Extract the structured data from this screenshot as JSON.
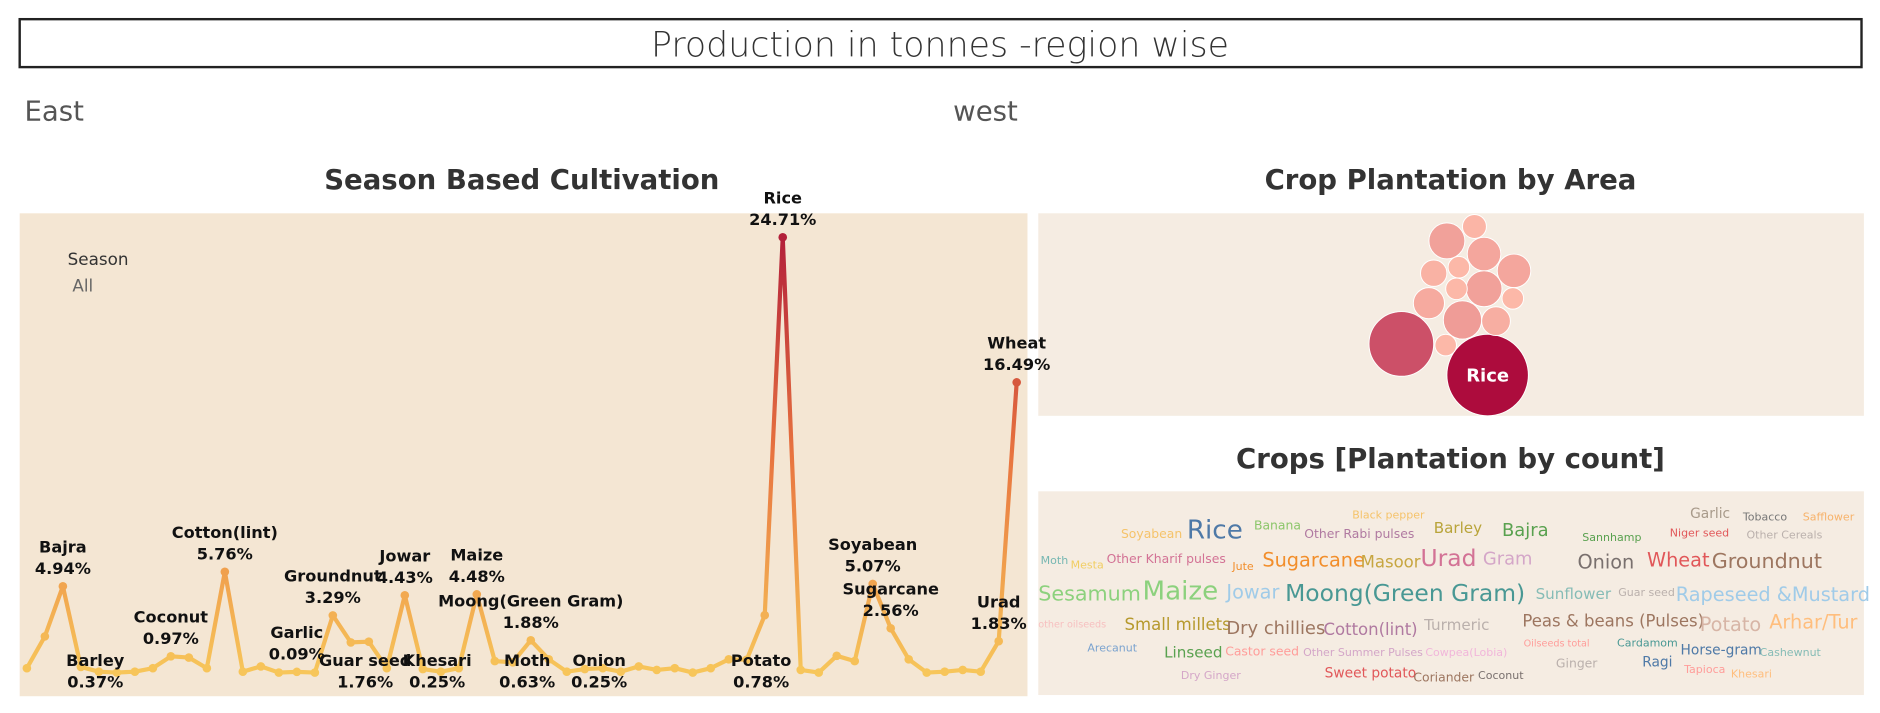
{
  "title": "Production in tonnes -region wise",
  "regions": [
    "East",
    "west"
  ],
  "chart_data": [
    {
      "type": "line",
      "title": "Season Based Cultivation",
      "filter_title": "Season",
      "filter_value": "All",
      "colors": [
        "#f7c65a",
        "#e8743f",
        "#b3203a"
      ],
      "categories": [
        null,
        null,
        "Bajra",
        "Barley",
        null,
        null,
        null,
        null,
        "Coconut",
        null,
        null,
        "Cotton(lint)",
        null,
        null,
        null,
        "Garlic",
        null,
        "Groundnut",
        "Guar seed",
        null,
        null,
        "Jowar",
        "Khesari",
        null,
        null,
        "Maize",
        null,
        "Moth",
        "Moong(Green Gram)",
        null,
        null,
        "Onion",
        null,
        null,
        null,
        null,
        null,
        null,
        null,
        null,
        "Potato",
        null,
        "Rice",
        null,
        null,
        null,
        null,
        "Soyabean",
        "Sugarcane",
        null,
        null,
        null,
        null,
        null,
        "Urad",
        "Wheat"
      ],
      "values": [
        0.3,
        2.1,
        4.94,
        0.37,
        0.1,
        0.05,
        0.1,
        0.3,
        0.97,
        0.9,
        0.3,
        5.76,
        0.1,
        0.4,
        0.05,
        0.09,
        0.05,
        3.29,
        1.76,
        1.8,
        0.3,
        4.43,
        0.25,
        0.1,
        0.3,
        4.48,
        0.7,
        0.63,
        1.88,
        0.8,
        0.1,
        0.25,
        0.3,
        0.1,
        0.4,
        0.2,
        0.3,
        0.05,
        0.3,
        0.8,
        0.78,
        3.3,
        24.71,
        0.2,
        0.05,
        1.0,
        0.7,
        5.07,
        2.56,
        0.8,
        0.05,
        0.1,
        0.2,
        0.1,
        1.83,
        16.49
      ],
      "value_labels": [
        null,
        null,
        "4.94%",
        "0.37%",
        null,
        null,
        null,
        null,
        "0.97%",
        null,
        null,
        "5.76%",
        null,
        null,
        null,
        "0.09%",
        null,
        "3.29%",
        "1.76%",
        null,
        null,
        "4.43%",
        "0.25%",
        null,
        null,
        "4.48%",
        null,
        "0.63%",
        "1.88%",
        null,
        null,
        "0.25%",
        null,
        null,
        null,
        null,
        null,
        null,
        null,
        null,
        "0.78%",
        null,
        "24.71%",
        null,
        null,
        null,
        null,
        "5.07%",
        "2.56%",
        null,
        null,
        null,
        null,
        null,
        "1.83%",
        "16.49%"
      ]
    },
    {
      "type": "bubble",
      "title": "Crop Plantation by Area",
      "colors": [
        "#fcb8a8",
        "#ad0c3d"
      ],
      "categories": [
        "Rice",
        null,
        null,
        null,
        null,
        null,
        null,
        null,
        null,
        null,
        null,
        null,
        null,
        null,
        null
      ],
      "values": [
        1156,
        729,
        225,
        100,
        196,
        196,
        121,
        81,
        225,
        169,
        81,
        81,
        256,
        144,
        81
      ]
    },
    {
      "type": "wordcloud",
      "title": "Crops [Plantation by count]",
      "words": [
        {
          "name": "Black pepper",
          "color": "#f5c36a",
          "value": 8
        },
        {
          "name": "Garlic",
          "color": "#a89a8a",
          "value": 10
        },
        {
          "name": "Tobacco",
          "color": "#777777",
          "value": 8
        },
        {
          "name": "Safflower",
          "color": "#f7b26a",
          "value": 8
        },
        {
          "name": "Soyabean",
          "color": "#f5c36a",
          "value": 9
        },
        {
          "name": "Rice",
          "color": "#4e79a7",
          "value": 19
        },
        {
          "name": "Banana",
          "color": "#8cc66a",
          "value": 9
        },
        {
          "name": "Other Rabi pulses",
          "color": "#b07aa1",
          "value": 9
        },
        {
          "name": "Barley",
          "color": "#b9a43a",
          "value": 11
        },
        {
          "name": "Bajra",
          "color": "#59a14f",
          "value": 13
        },
        {
          "name": "Sannhamp",
          "color": "#59a14f",
          "value": 8
        },
        {
          "name": "Niger seed",
          "color": "#e15759",
          "value": 8
        },
        {
          "name": "Other Cereals",
          "color": "#bab0ac",
          "value": 8
        },
        {
          "name": "Moth",
          "color": "#76b7b2",
          "value": 8
        },
        {
          "name": "Mesta",
          "color": "#f1ce63",
          "value": 8
        },
        {
          "name": "Other Kharif pulses",
          "color": "#d37295",
          "value": 9
        },
        {
          "name": "Jute",
          "color": "#f28e2b",
          "value": 8
        },
        {
          "name": "Sugarcane",
          "color": "#f28e2b",
          "value": 14
        },
        {
          "name": "Masoor",
          "color": "#c7a640",
          "value": 12
        },
        {
          "name": "Urad",
          "color": "#d37295",
          "value": 17
        },
        {
          "name": "Gram",
          "color": "#d4a6c8",
          "value": 13
        },
        {
          "name": "Onion",
          "color": "#79706e",
          "value": 14
        },
        {
          "name": "Wheat",
          "color": "#e15759",
          "value": 14
        },
        {
          "name": "Groundnut",
          "color": "#9d7660",
          "value": 15
        },
        {
          "name": "Sesamum",
          "color": "#8cd17d",
          "value": 15
        },
        {
          "name": "Maize",
          "color": "#8cd17d",
          "value": 19
        },
        {
          "name": "Jowar",
          "color": "#a0cbe8",
          "value": 14
        },
        {
          "name": "Moong(Green Gram)",
          "color": "#499894",
          "value": 17
        },
        {
          "name": "Sunflower",
          "color": "#86bcb6",
          "value": 11
        },
        {
          "name": "Guar seed",
          "color": "#bab0ac",
          "value": 8
        },
        {
          "name": "Rapeseed &Mustard",
          "color": "#a0cbe8",
          "value": 14
        },
        {
          "name": "other oilseeds",
          "color": "#f7c0c0",
          "value": 7
        },
        {
          "name": "Small millets",
          "color": "#b6992d",
          "value": 12
        },
        {
          "name": "Dry chillies",
          "color": "#9d7660",
          "value": 13
        },
        {
          "name": "Cotton(lint)",
          "color": "#b07aa1",
          "value": 12
        },
        {
          "name": "Turmeric",
          "color": "#bab0ac",
          "value": 11
        },
        {
          "name": "Peas & beans (Pulses)",
          "color": "#9d7660",
          "value": 12
        },
        {
          "name": "Potato",
          "color": "#d7b5a6",
          "value": 14
        },
        {
          "name": "Arhar/Tur",
          "color": "#ffbe7d",
          "value": 14
        },
        {
          "name": "Arecanut",
          "color": "#7ba3cf",
          "value": 8
        },
        {
          "name": "Linseed",
          "color": "#59a14f",
          "value": 11
        },
        {
          "name": "Castor seed",
          "color": "#ff9d9a",
          "value": 9
        },
        {
          "name": "Other Summer Pulses",
          "color": "#d4a6c8",
          "value": 8
        },
        {
          "name": "Cowpea(Lobia)",
          "color": "#f1b6da",
          "value": 8
        },
        {
          "name": "Oilseeds total",
          "color": "#ff9d9a",
          "value": 7
        },
        {
          "name": "Cardamom",
          "color": "#499894",
          "value": 8
        },
        {
          "name": "Horse-gram",
          "color": "#4e79a7",
          "value": 10
        },
        {
          "name": "Cashewnut",
          "color": "#86bcb6",
          "value": 8
        },
        {
          "name": "Ginger",
          "color": "#bab0ac",
          "value": 9
        },
        {
          "name": "Ragi",
          "color": "#4e79a7",
          "value": 10
        },
        {
          "name": "Tapioca",
          "color": "#ff9d9a",
          "value": 8
        },
        {
          "name": "Khesari",
          "color": "#ffbe7d",
          "value": 8
        },
        {
          "name": "Dry Ginger",
          "color": "#d4a6c8",
          "value": 8
        },
        {
          "name": "Sweet potato",
          "color": "#e15759",
          "value": 10
        },
        {
          "name": "Coriander",
          "color": "#9d7660",
          "value": 9
        },
        {
          "name": "Coconut",
          "color": "#79706e",
          "value": 8
        }
      ]
    }
  ]
}
